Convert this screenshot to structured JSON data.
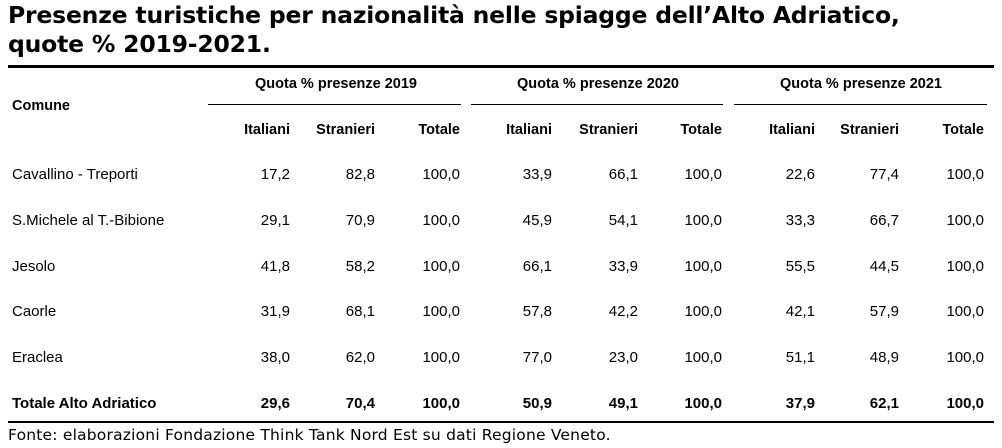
{
  "title": {
    "line1": "Presenze turistiche per nazionalità nelle spiagge dell’Alto Adriatico,",
    "line2": "quote % 2019-2021."
  },
  "table": {
    "row_header": "Comune",
    "groups": [
      "Quota % presenze 2019",
      "Quota % presenze 2020",
      "Quota % presenze 2021"
    ],
    "subheaders": [
      "Italiani",
      "Stranieri",
      "Totale",
      "Italiani",
      "Stranieri",
      "Totale",
      "Italiani",
      "Stranieri",
      "Totale"
    ],
    "rows": [
      {
        "name": "Cavallino - Treporti",
        "values": [
          "17,2",
          "82,8",
          "100,0",
          "33,9",
          "66,1",
          "100,0",
          "22,6",
          "77,4",
          "100,0"
        ]
      },
      {
        "name": "S.Michele al T.-Bibione",
        "values": [
          "29,1",
          "70,9",
          "100,0",
          "45,9",
          "54,1",
          "100,0",
          "33,3",
          "66,7",
          "100,0"
        ]
      },
      {
        "name": "Jesolo",
        "values": [
          "41,8",
          "58,2",
          "100,0",
          "66,1",
          "33,9",
          "100,0",
          "55,5",
          "44,5",
          "100,0"
        ]
      },
      {
        "name": "Caorle",
        "values": [
          "31,9",
          "68,1",
          "100,0",
          "57,8",
          "42,2",
          "100,0",
          "42,1",
          "57,9",
          "100,0"
        ]
      },
      {
        "name": "Eraclea",
        "values": [
          "38,0",
          "62,0",
          "100,0",
          "77,0",
          "23,0",
          "100,0",
          "51,1",
          "48,9",
          "100,0"
        ]
      }
    ],
    "total": {
      "name": "Totale Alto Adriatico",
      "values": [
        "29,6",
        "70,4",
        "100,0",
        "50,9",
        "49,1",
        "100,0",
        "37,9",
        "62,1",
        "100,0"
      ]
    }
  },
  "source": "Fonte: elaborazioni Fondazione Think Tank Nord Est su dati Regione Veneto."
}
